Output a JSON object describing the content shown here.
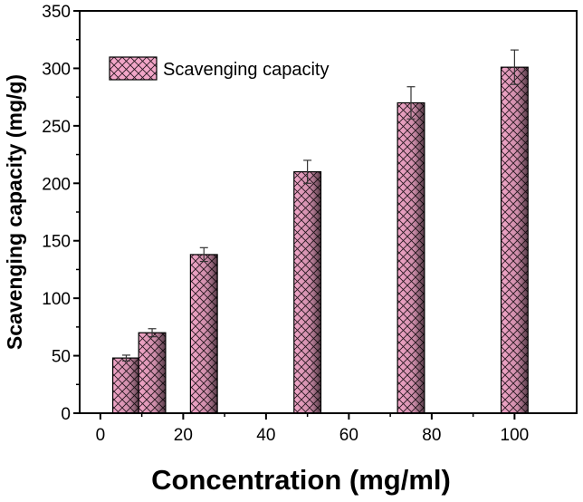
{
  "chart_data": {
    "type": "bar",
    "title": "",
    "xlabel": "Concentration (mg/ml)",
    "ylabel": "Scavenging capacity (mg/g)",
    "xlim": [
      -5,
      115
    ],
    "ylim": [
      0,
      350
    ],
    "xticks": [
      0,
      20,
      40,
      60,
      80,
      100
    ],
    "yticks": [
      0,
      50,
      100,
      150,
      200,
      250,
      300,
      350
    ],
    "bar_width": 6.5,
    "series": [
      {
        "name": "Scavenging capacity",
        "color": "#f2a6c8",
        "hatch_color": "#2a1a22",
        "x": [
          6.25,
          12.5,
          25,
          50,
          75,
          100
        ],
        "values": [
          48,
          70,
          138,
          210,
          270,
          301
        ],
        "errors": [
          2.5,
          3.5,
          6,
          10,
          14,
          15
        ]
      }
    ],
    "legend": {
      "position": "top-left"
    },
    "grid": false
  }
}
